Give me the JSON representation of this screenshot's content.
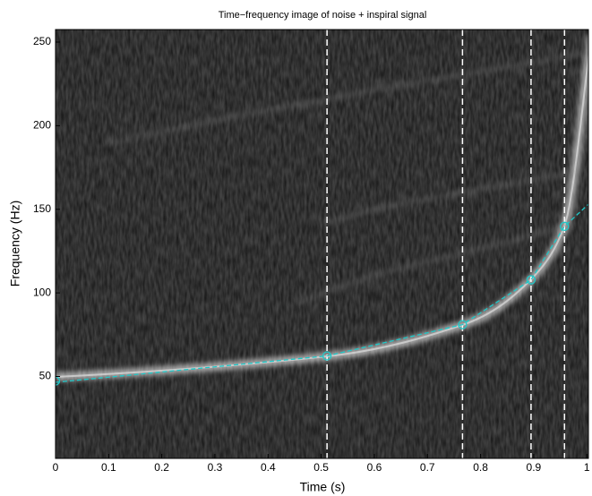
{
  "chart_data": {
    "type": "line",
    "title": "Time−frequency image of noise + inspiral signal",
    "xlabel": "Time (s)",
    "ylabel": "Frequency (Hz)",
    "xlim": [
      0,
      1.003
    ],
    "ylim": [
      1,
      257.5
    ],
    "xticks": [
      0,
      0.1,
      0.2,
      0.3,
      0.4,
      0.5,
      0.6,
      0.7,
      0.8,
      0.9,
      1
    ],
    "yticks": [
      50,
      100,
      150,
      200,
      250
    ],
    "vlines": [
      0.511,
      0.766,
      0.895,
      0.958
    ],
    "vline_color": "#ffffff",
    "series": [
      {
        "color": "#1fc8c8",
        "style": "dashed",
        "x": [
          0,
          0.511,
          0.766,
          0.895,
          0.958,
          1.003
        ],
        "values": [
          46.5,
          62.3,
          81,
          107.8,
          139.8,
          153
        ]
      },
      {
        "color": "#1fc8c8",
        "marker": "circle",
        "x": [
          0,
          0.511,
          0.766,
          0.895,
          0.958
        ],
        "values": [
          47.3,
          62.3,
          81,
          107.8,
          139.8
        ]
      }
    ]
  }
}
